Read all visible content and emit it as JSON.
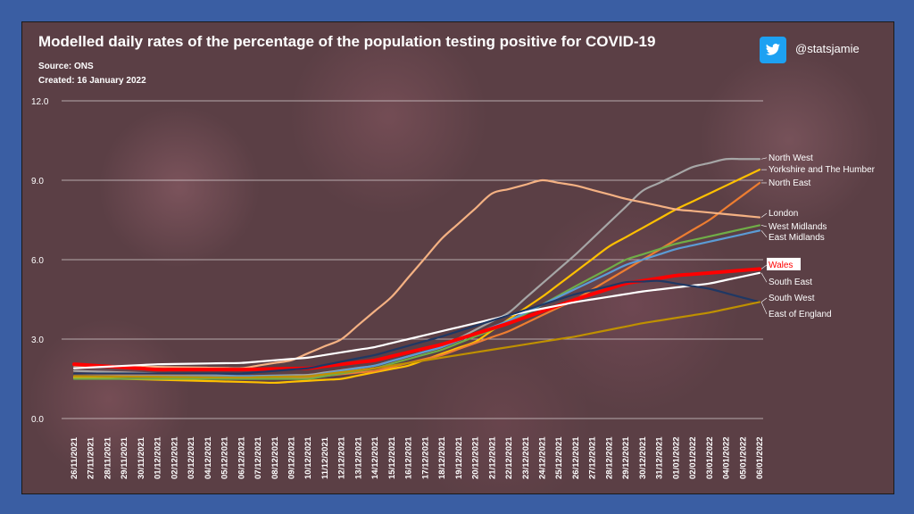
{
  "header": {
    "title": "Modelled daily rates of the percentage of the population testing positive for COVID-19",
    "source": "Source: ONS",
    "created": "Created: 16 January 2022",
    "handle": "@statsjamie",
    "twitter_icon": "twitter-bird-icon"
  },
  "chart_data": {
    "type": "line",
    "title": "Modelled daily rates of the percentage of the population testing positive for COVID-19",
    "xlabel": "",
    "ylabel": "",
    "ylim": [
      0,
      12
    ],
    "yticks": [
      "0.0",
      "3.0",
      "6.0",
      "9.0",
      "12.0"
    ],
    "categories": [
      "26/11/2021",
      "27/11/2021",
      "28/11/2021",
      "29/11/2021",
      "30/11/2021",
      "01/12/2021",
      "02/12/2021",
      "03/12/2021",
      "04/12/2021",
      "05/12/2021",
      "06/12/2021",
      "07/12/2021",
      "08/12/2021",
      "09/12/2021",
      "10/12/2021",
      "11/12/2021",
      "12/12/2021",
      "13/12/2021",
      "14/12/2021",
      "15/12/2021",
      "16/12/2021",
      "17/12/2021",
      "18/12/2021",
      "19/12/2021",
      "20/12/2021",
      "21/12/2021",
      "22/12/2021",
      "23/12/2021",
      "24/12/2021",
      "25/12/2021",
      "26/12/2021",
      "27/12/2021",
      "28/12/2021",
      "29/12/2021",
      "30/12/2021",
      "31/12/2021",
      "01/01/2022",
      "02/01/2022",
      "03/01/2022",
      "04/01/2022",
      "05/01/2022",
      "06/01/2022"
    ],
    "series": [
      {
        "name": "North West",
        "color": "#a6a6a6",
        "anchors": [
          [
            0,
            1.8
          ],
          [
            10,
            1.6
          ],
          [
            14,
            1.65
          ],
          [
            18,
            2.0
          ],
          [
            22,
            2.7
          ],
          [
            26,
            4.0
          ],
          [
            30,
            6.2
          ],
          [
            34,
            8.6
          ],
          [
            37,
            9.5
          ],
          [
            39,
            9.8
          ],
          [
            41,
            9.8
          ]
        ]
      },
      {
        "name": "Yorkshire and The Humber",
        "color": "#ffc000",
        "anchors": [
          [
            0,
            1.55
          ],
          [
            12,
            1.35
          ],
          [
            16,
            1.5
          ],
          [
            20,
            2.0
          ],
          [
            24,
            2.9
          ],
          [
            28,
            4.6
          ],
          [
            32,
            6.5
          ],
          [
            36,
            7.9
          ],
          [
            41,
            9.4
          ]
        ]
      },
      {
        "name": "North East",
        "color": "#ed7d31",
        "anchors": [
          [
            0,
            1.7
          ],
          [
            14,
            1.55
          ],
          [
            18,
            1.8
          ],
          [
            22,
            2.4
          ],
          [
            26,
            3.3
          ],
          [
            30,
            4.5
          ],
          [
            34,
            6.0
          ],
          [
            38,
            7.5
          ],
          [
            41,
            8.9
          ]
        ]
      },
      {
        "name": "London",
        "color": "#f4b183",
        "anchors": [
          [
            0,
            2.0
          ],
          [
            10,
            1.9
          ],
          [
            13,
            2.2
          ],
          [
            16,
            3.0
          ],
          [
            19,
            4.6
          ],
          [
            22,
            6.8
          ],
          [
            25,
            8.5
          ],
          [
            28,
            9.0
          ],
          [
            30,
            8.8
          ],
          [
            33,
            8.3
          ],
          [
            36,
            7.9
          ],
          [
            41,
            7.6
          ]
        ]
      },
      {
        "name": "West Midlands",
        "color": "#70ad47",
        "anchors": [
          [
            0,
            1.5
          ],
          [
            14,
            1.5
          ],
          [
            18,
            1.9
          ],
          [
            22,
            2.6
          ],
          [
            26,
            3.6
          ],
          [
            30,
            5.0
          ],
          [
            33,
            6.0
          ],
          [
            36,
            6.6
          ],
          [
            41,
            7.3
          ]
        ]
      },
      {
        "name": "East Midlands",
        "color": "#5b9bd5",
        "anchors": [
          [
            0,
            1.6
          ],
          [
            14,
            1.6
          ],
          [
            18,
            2.0
          ],
          [
            22,
            2.7
          ],
          [
            26,
            3.7
          ],
          [
            30,
            4.9
          ],
          [
            33,
            5.8
          ],
          [
            36,
            6.4
          ],
          [
            41,
            7.1
          ]
        ]
      },
      {
        "name": "Wales",
        "color": "#ff0000",
        "anchors": [
          [
            0,
            2.05
          ],
          [
            5,
            1.85
          ],
          [
            10,
            1.85
          ],
          [
            14,
            1.9
          ],
          [
            18,
            2.2
          ],
          [
            22,
            2.8
          ],
          [
            26,
            3.6
          ],
          [
            30,
            4.5
          ],
          [
            33,
            5.1
          ],
          [
            36,
            5.4
          ],
          [
            41,
            5.65
          ]
        ]
      },
      {
        "name": "South East",
        "color": "#ffffff",
        "anchors": [
          [
            0,
            1.9
          ],
          [
            5,
            2.05
          ],
          [
            10,
            2.1
          ],
          [
            14,
            2.3
          ],
          [
            18,
            2.7
          ],
          [
            22,
            3.3
          ],
          [
            26,
            3.9
          ],
          [
            30,
            4.4
          ],
          [
            34,
            4.8
          ],
          [
            38,
            5.1
          ],
          [
            41,
            5.5
          ]
        ]
      },
      {
        "name": "South West",
        "color": "#1f3864",
        "anchors": [
          [
            0,
            1.7
          ],
          [
            10,
            1.7
          ],
          [
            14,
            1.9
          ],
          [
            18,
            2.4
          ],
          [
            22,
            3.1
          ],
          [
            26,
            3.9
          ],
          [
            30,
            4.7
          ],
          [
            33,
            5.15
          ],
          [
            35,
            5.2
          ],
          [
            38,
            4.9
          ],
          [
            41,
            4.4
          ]
        ]
      },
      {
        "name": "East of England",
        "color": "#bf9000",
        "anchors": [
          [
            0,
            1.6
          ],
          [
            10,
            1.55
          ],
          [
            14,
            1.6
          ],
          [
            18,
            1.9
          ],
          [
            22,
            2.3
          ],
          [
            26,
            2.7
          ],
          [
            30,
            3.1
          ],
          [
            34,
            3.6
          ],
          [
            38,
            4.0
          ],
          [
            41,
            4.4
          ]
        ]
      }
    ],
    "labels": [
      {
        "text": "North West",
        "series": "North West",
        "value": 9.85
      },
      {
        "text": "Yorkshire and The Humber",
        "series": "Yorkshire and The Humber",
        "value": 9.4
      },
      {
        "text": "North East",
        "series": "North East",
        "value": 8.9
      },
      {
        "text": "London",
        "series": "London",
        "value": 7.75
      },
      {
        "text": "West Midlands",
        "series": "West Midlands",
        "value": 7.25
      },
      {
        "text": "East Midlands",
        "series": "East Midlands",
        "value": 6.85
      },
      {
        "text": "Wales",
        "series": "Wales",
        "value": 5.8,
        "boxed": true
      },
      {
        "text": "South East",
        "series": "South East",
        "value": 5.15
      },
      {
        "text": "South West",
        "series": "South West",
        "value": 4.55
      },
      {
        "text": "East of England",
        "series": "East of England",
        "value": 3.95
      }
    ]
  }
}
